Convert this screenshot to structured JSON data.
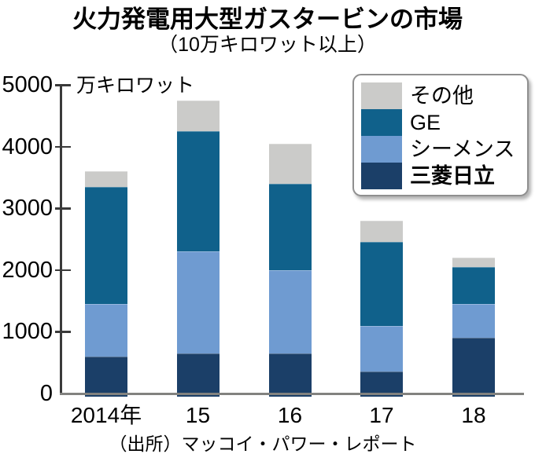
{
  "title": "火力発電用大型ガスタービンの市場",
  "subtitle": "（10万キロワット以上）",
  "source": "（出所）マッコイ・パワー・レポート",
  "legend": {
    "items": [
      {
        "label": "その他",
        "color": "#cbcbc9",
        "bold": false
      },
      {
        "label": "GE",
        "color": "#10618b",
        "bold": false
      },
      {
        "label": "シーメンス",
        "color": "#6f9bd1",
        "bold": false
      },
      {
        "label": "三菱日立",
        "color": "#1b3f68",
        "bold": true
      }
    ]
  },
  "chart_data": {
    "type": "bar",
    "stacked": true,
    "title": "火力発電用大型ガスタービンの市場",
    "subtitle": "（10万キロワット以上）",
    "ylabel": "万キロワット",
    "xlabel": "",
    "categories": [
      "2014年",
      "15",
      "16",
      "17",
      "18"
    ],
    "series": [
      {
        "name": "三菱日立",
        "color": "#1b3f68",
        "values": [
          600,
          650,
          650,
          350,
          900
        ]
      },
      {
        "name": "シーメンス",
        "color": "#6f9bd1",
        "values": [
          850,
          1650,
          1350,
          750,
          550
        ]
      },
      {
        "name": "GE",
        "color": "#10618b",
        "values": [
          1900,
          1950,
          1400,
          1350,
          600
        ]
      },
      {
        "name": "その他",
        "color": "#cbcbc9",
        "values": [
          250,
          500,
          650,
          350,
          150
        ]
      }
    ],
    "totals": [
      3600,
      4750,
      4050,
      2800,
      2200
    ],
    "ylim": [
      0,
      5000
    ],
    "yticks": [
      0,
      1000,
      2000,
      3000,
      4000,
      5000
    ],
    "grid": false,
    "legend_position": "upper right",
    "legend_order": [
      "その他",
      "GE",
      "シーメンス",
      "三菱日立"
    ],
    "source": "（出所）マッコイ・パワー・レポート"
  }
}
